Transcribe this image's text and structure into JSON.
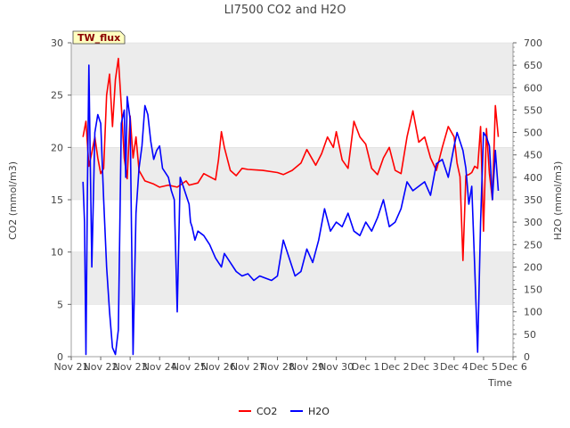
{
  "chart_data": {
    "type": "line",
    "title": "LI7500 CO2 and H2O",
    "badge": "TW_flux",
    "xlabel": "Time",
    "ylabel_left": "CO2 (mmol/m3)",
    "ylabel_right": "H2O (mmol/m3)",
    "x_ticks": [
      "Nov 21",
      "Nov 22",
      "Nov 23",
      "Nov 24",
      "Nov 25",
      "Nov 26",
      "Nov 27",
      "Nov 28",
      "Nov 29",
      "Nov 30",
      "Dec 1",
      "Dec 2",
      "Dec 3",
      "Dec 4",
      "Dec 5",
      "Dec 6"
    ],
    "xlim_days": [
      0,
      15
    ],
    "ylim_left": [
      0,
      30
    ],
    "ylim_right": [
      0,
      700
    ],
    "y_ticks_left": [
      0,
      5,
      10,
      15,
      20,
      25,
      30
    ],
    "y_ticks_right": [
      0,
      50,
      100,
      150,
      200,
      250,
      300,
      350,
      400,
      450,
      500,
      550,
      600,
      650,
      700
    ],
    "grid": "horizontal bands",
    "legend_position": "bottom-center",
    "colors": {
      "CO2": "#ff0000",
      "H2O": "#0000ff",
      "band": "#ececec",
      "badge_bg": "#ffffc0",
      "badge_text": "#8b0000"
    },
    "series": [
      {
        "name": "CO2",
        "axis": "left",
        "x_days": [
          0.4,
          0.5,
          0.6,
          0.7,
          0.8,
          0.9,
          1.0,
          1.1,
          1.2,
          1.3,
          1.4,
          1.5,
          1.6,
          1.7,
          1.8,
          1.9,
          2.0,
          2.1,
          2.2,
          2.3,
          2.5,
          2.8,
          3.0,
          3.3,
          3.6,
          3.9,
          4.0,
          4.3,
          4.5,
          4.7,
          4.9,
          5.0,
          5.1,
          5.2,
          5.4,
          5.6,
          5.8,
          6.0,
          6.5,
          7.0,
          7.2,
          7.5,
          7.8,
          8.0,
          8.3,
          8.5,
          8.7,
          8.9,
          9.0,
          9.2,
          9.4,
          9.6,
          9.8,
          10.0,
          10.2,
          10.4,
          10.6,
          10.8,
          11.0,
          11.2,
          11.4,
          11.6,
          11.8,
          12.0,
          12.2,
          12.4,
          12.6,
          12.8,
          13.0,
          13.1,
          13.2,
          13.3,
          13.4,
          13.5,
          13.6,
          13.7,
          13.8,
          13.9,
          14.0,
          14.1,
          14.2,
          14.3,
          14.4,
          14.5
        ],
        "values": [
          21.0,
          22.5,
          18.2,
          19.5,
          21.0,
          19.0,
          17.5,
          18.0,
          25.0,
          27.0,
          22.0,
          26.5,
          28.5,
          24.0,
          19.0,
          17.0,
          23.0,
          19.0,
          21.0,
          17.8,
          16.8,
          16.5,
          16.2,
          16.4,
          16.2,
          16.8,
          16.4,
          16.6,
          17.5,
          17.2,
          16.9,
          18.8,
          21.5,
          20.0,
          17.8,
          17.3,
          18.0,
          17.9,
          17.8,
          17.6,
          17.4,
          17.8,
          18.5,
          19.8,
          18.3,
          19.4,
          21.0,
          20.0,
          21.5,
          18.8,
          18.0,
          22.5,
          21.0,
          20.3,
          18.0,
          17.4,
          19.0,
          20.0,
          17.8,
          17.5,
          21.0,
          23.5,
          20.5,
          21.0,
          19.0,
          17.8,
          20.0,
          22.0,
          21.0,
          18.5,
          17.2,
          9.2,
          17.3,
          17.4,
          17.6,
          18.2,
          18.0,
          22.0,
          12.0,
          21.8,
          17.5,
          15.0,
          24.0,
          21.0
        ]
      },
      {
        "name": "H2O",
        "axis": "right",
        "x_days": [
          0.4,
          0.45,
          0.5,
          0.55,
          0.6,
          0.7,
          0.8,
          0.9,
          1.0,
          1.1,
          1.2,
          1.3,
          1.4,
          1.5,
          1.6,
          1.7,
          1.8,
          1.85,
          1.9,
          2.0,
          2.1,
          2.2,
          2.3,
          2.4,
          2.5,
          2.6,
          2.7,
          2.8,
          2.9,
          3.0,
          3.1,
          3.2,
          3.3,
          3.4,
          3.5,
          3.6,
          3.7,
          3.8,
          3.9,
          4.0,
          4.05,
          4.1,
          4.2,
          4.3,
          4.5,
          4.7,
          4.9,
          5.0,
          5.1,
          5.2,
          5.4,
          5.6,
          5.8,
          6.0,
          6.2,
          6.4,
          6.6,
          6.8,
          7.0,
          7.2,
          7.4,
          7.6,
          7.8,
          8.0,
          8.2,
          8.4,
          8.6,
          8.8,
          9.0,
          9.2,
          9.4,
          9.6,
          9.8,
          10.0,
          10.2,
          10.4,
          10.6,
          10.8,
          11.0,
          11.2,
          11.4,
          11.6,
          11.8,
          12.0,
          12.2,
          12.4,
          12.6,
          12.8,
          13.0,
          13.1,
          13.2,
          13.3,
          13.4,
          13.5,
          13.6,
          13.7,
          13.8,
          13.9,
          14.0,
          14.1,
          14.2,
          14.3,
          14.4,
          14.5
        ],
        "values": [
          390,
          300,
          5,
          380,
          650,
          200,
          500,
          540,
          520,
          350,
          200,
          100,
          20,
          5,
          60,
          520,
          550,
          400,
          580,
          530,
          5,
          320,
          420,
          470,
          560,
          540,
          480,
          440,
          460,
          470,
          420,
          410,
          400,
          370,
          350,
          100,
          400,
          380,
          360,
          340,
          300,
          290,
          260,
          280,
          270,
          250,
          220,
          210,
          200,
          230,
          210,
          190,
          180,
          185,
          170,
          180,
          175,
          170,
          180,
          260,
          220,
          180,
          190,
          240,
          210,
          260,
          330,
          280,
          300,
          290,
          320,
          280,
          270,
          300,
          280,
          310,
          350,
          290,
          300,
          330,
          390,
          370,
          380,
          390,
          360,
          430,
          440,
          400,
          470,
          500,
          480,
          460,
          420,
          340,
          380,
          200,
          10,
          300,
          500,
          490,
          470,
          350,
          460,
          370
        ]
      }
    ]
  }
}
